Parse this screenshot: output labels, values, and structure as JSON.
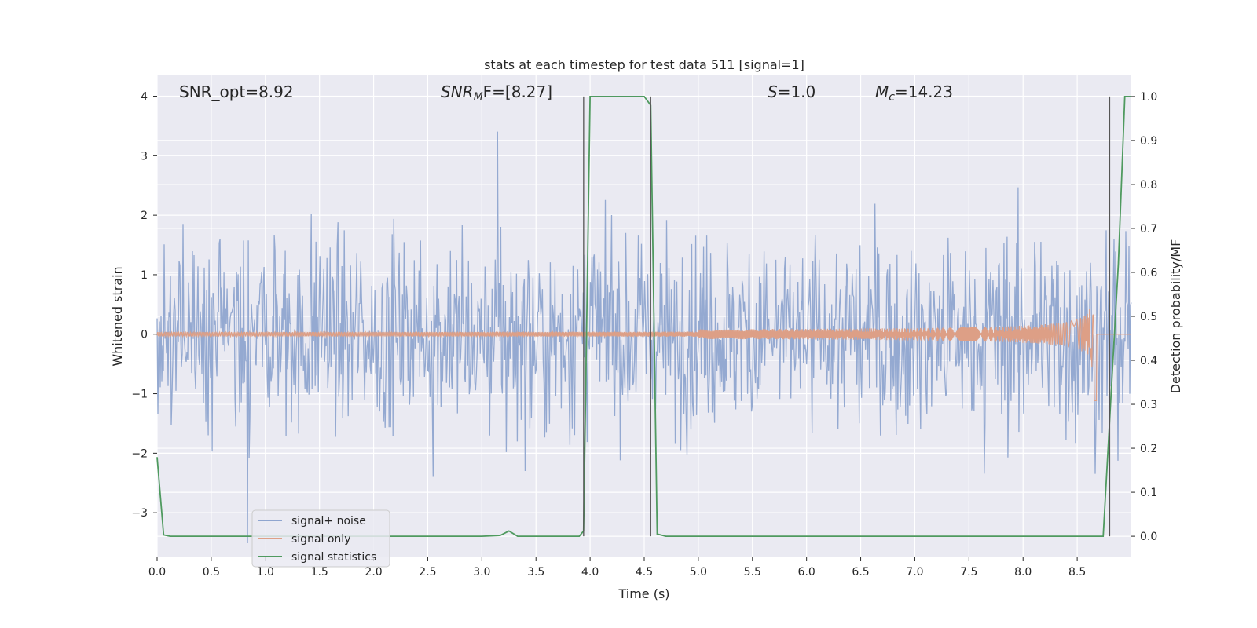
{
  "chart_data": {
    "type": "line",
    "title": "stats at each timestep for test data 511 [signal=1]",
    "xlabel": "Time (s)",
    "ylabel_left": "Whitened strain",
    "ylabel_right": "Detection probability/MF",
    "xlim": [
      0.0,
      9.0
    ],
    "ylim_left": [
      -3.75,
      4.35
    ],
    "ylim_right": [
      -0.048,
      1.048
    ],
    "x_ticks": [
      "0.0",
      "0.5",
      "1.0",
      "1.5",
      "2.0",
      "2.5",
      "3.0",
      "3.5",
      "4.0",
      "4.5",
      "5.0",
      "5.5",
      "6.0",
      "6.5",
      "7.0",
      "7.5",
      "8.0",
      "8.5"
    ],
    "y_left_ticks": [
      "−3",
      "−2",
      "−1",
      "0",
      "1",
      "2",
      "3",
      "4"
    ],
    "y_right_ticks": [
      "0.0",
      "0.1",
      "0.2",
      "0.3",
      "0.4",
      "0.5",
      "0.6",
      "0.7",
      "0.8",
      "0.9",
      "1.0"
    ],
    "grid": true,
    "legend_position": "lower-left",
    "annotations": {
      "snr_opt": "SNR_opt=8.92",
      "snr_mf": "SNR",
      "snr_mf_sub": "M",
      "snr_mf_rest": "F=[8.27]",
      "s_label": "S",
      "s_value": "=1.0",
      "mc_label": "M",
      "mc_sub": "c",
      "mc_value": "=14.23"
    },
    "vertical_lines_x": [
      3.94,
      4.56,
      8.8
    ],
    "series": [
      {
        "name": "signal+ noise",
        "color": "#8fa5cf",
        "axis": "left",
        "description_range": [
          -3.5,
          3.4
        ]
      },
      {
        "name": "signal only",
        "color": "#dd9f86",
        "axis": "left",
        "peak_time": 8.66,
        "peak_amplitude": 1.22
      },
      {
        "name": "signal statistics",
        "color": "#4f9a5f",
        "axis": "right",
        "x": [
          0.0,
          0.06,
          0.12,
          0.5,
          1.0,
          1.5,
          2.0,
          2.5,
          3.0,
          3.17,
          3.25,
          3.33,
          3.5,
          3.75,
          3.9,
          3.94,
          4.0,
          4.25,
          4.5,
          4.56,
          4.62,
          4.7,
          5.0,
          5.5,
          6.0,
          6.5,
          7.0,
          7.5,
          8.0,
          8.5,
          8.74,
          8.88,
          8.94,
          9.0
        ],
        "y": [
          0.18,
          0.003,
          0.0,
          0.0,
          0.0,
          0.0,
          0.0,
          0.0,
          0.0,
          0.002,
          0.012,
          0.0,
          0.0,
          0.0,
          0.0,
          0.012,
          1.0,
          1.0,
          1.0,
          0.98,
          0.005,
          0.0,
          0.0,
          0.0,
          0.0,
          0.0,
          0.0,
          0.0,
          0.0,
          0.0,
          0.0,
          0.62,
          1.0,
          1.0
        ]
      }
    ]
  }
}
